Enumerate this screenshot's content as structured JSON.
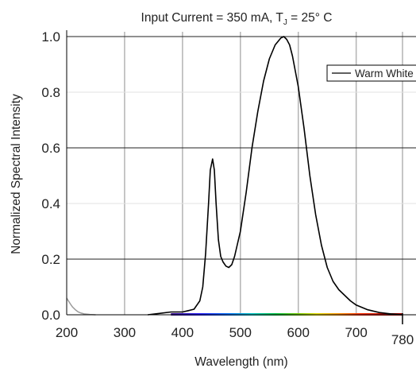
{
  "chart_data": {
    "type": "line",
    "title": "Input Current = 350 mA, T",
    "title_subscript": "J",
    "title_suffix": " = 25° C",
    "xlabel": "Wavelength (nm)",
    "ylabel": "Normalized Spectral Intensity",
    "xlim": [
      200,
      780
    ],
    "ylim": [
      0,
      1.0
    ],
    "x_ticks": [
      200,
      300,
      400,
      500,
      600,
      700,
      780
    ],
    "y_ticks": [
      0.0,
      0.2,
      0.4,
      0.6,
      0.8,
      1.0
    ],
    "x_tick_labels": [
      "200",
      "300",
      "400",
      "500",
      "600",
      "700",
      "780"
    ],
    "y_tick_labels": [
      "0.0",
      "0.2",
      "0.4",
      "0.6",
      "0.8",
      "1.0"
    ],
    "grid": {
      "vertical": true,
      "horizontal_major": true
    },
    "legend": {
      "placement": "top-right",
      "entries": [
        "Warm White"
      ]
    },
    "colors": {
      "series": "#000000",
      "grid": "#b3b3b3",
      "uv_tail": "#9a9a9a"
    },
    "series": [
      {
        "name": "Warm White",
        "x": [
          340,
          360,
          380,
          400,
          410,
          420,
          430,
          435,
          440,
          445,
          448,
          452,
          455,
          458,
          462,
          466,
          470,
          475,
          480,
          485,
          490,
          500,
          510,
          520,
          530,
          540,
          550,
          560,
          570,
          575,
          580,
          585,
          590,
          600,
          610,
          620,
          630,
          640,
          650,
          660,
          670,
          680,
          690,
          700,
          720,
          740,
          760,
          780
        ],
        "y": [
          0.0,
          0.005,
          0.01,
          0.01,
          0.015,
          0.02,
          0.05,
          0.1,
          0.22,
          0.4,
          0.52,
          0.56,
          0.52,
          0.4,
          0.27,
          0.21,
          0.19,
          0.175,
          0.17,
          0.18,
          0.21,
          0.3,
          0.44,
          0.6,
          0.73,
          0.84,
          0.92,
          0.97,
          0.995,
          1.0,
          0.99,
          0.97,
          0.93,
          0.82,
          0.67,
          0.5,
          0.36,
          0.25,
          0.17,
          0.12,
          0.09,
          0.07,
          0.05,
          0.035,
          0.018,
          0.008,
          0.003,
          0.0
        ]
      }
    ],
    "uv_tail": {
      "x": [
        200,
        203,
        206,
        210,
        215,
        220,
        225,
        230,
        240,
        250
      ],
      "y": [
        0.06,
        0.05,
        0.04,
        0.028,
        0.018,
        0.01,
        0.006,
        0.003,
        0.001,
        0.0
      ]
    },
    "spectrum_band": {
      "start": 380,
      "end": 780
    }
  }
}
